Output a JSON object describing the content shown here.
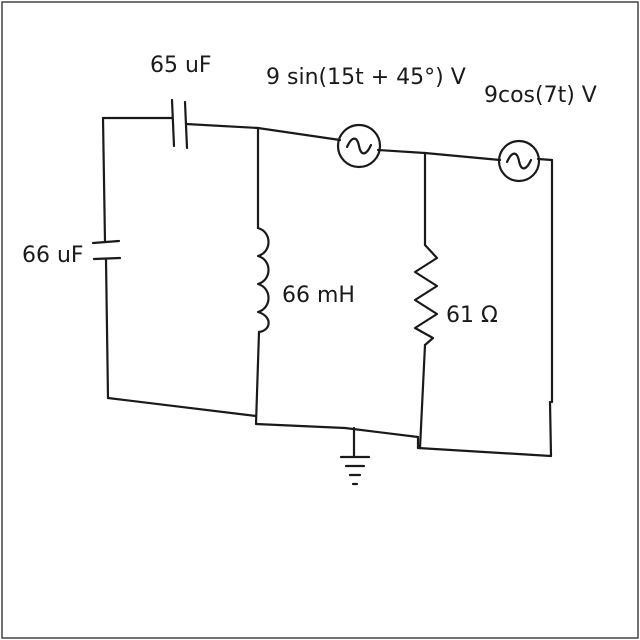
{
  "components": {
    "c_top": {
      "label": "65 uF"
    },
    "c_left": {
      "label": "66 uF"
    },
    "inductor": {
      "label": "66 mH"
    },
    "resistor": {
      "label": "61 Ω"
    },
    "source1": {
      "label": "9 sin(15t + 45°) V"
    },
    "source2": {
      "label": "9cos(7t) V"
    }
  }
}
